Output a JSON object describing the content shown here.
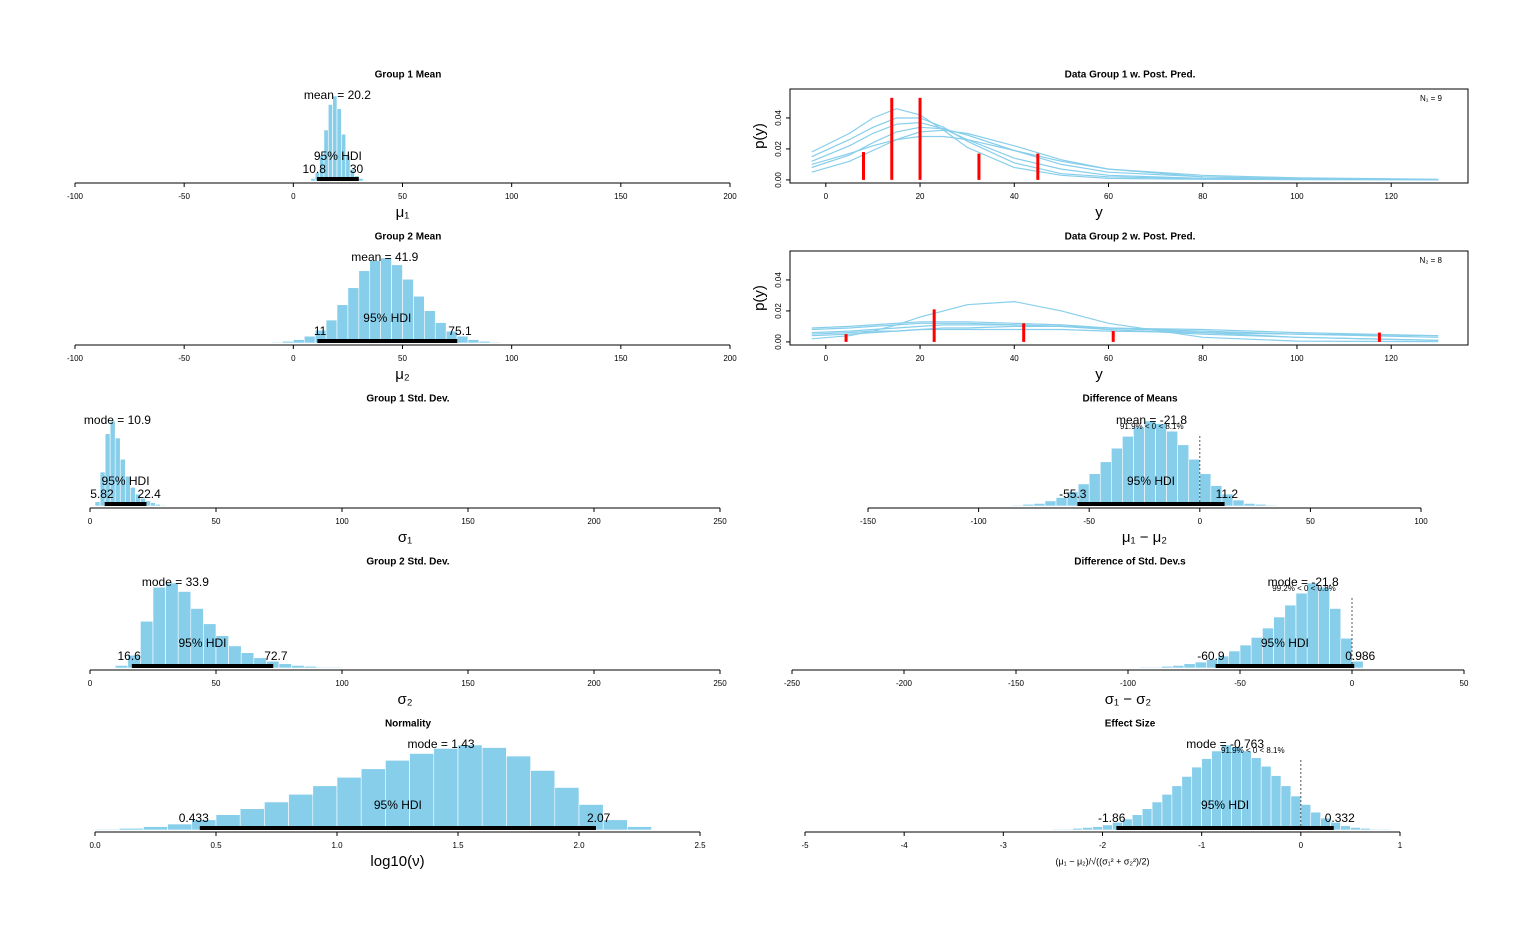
{
  "chart_data": [
    {
      "type": "histogram",
      "title": "Group 1 Mean",
      "xlabel": "μ₁",
      "xlim": [
        -100,
        200
      ],
      "xticks": [
        -100,
        -50,
        0,
        50,
        100,
        150,
        200
      ],
      "bins": [
        8,
        10,
        12,
        14,
        16,
        18,
        20,
        22,
        24,
        26,
        28,
        30,
        32,
        34
      ],
      "counts": [
        3,
        10,
        30,
        60,
        90,
        100,
        85,
        55,
        30,
        14,
        6,
        3,
        1
      ],
      "color": "#87ceeb",
      "center": {
        "value": 20.2,
        "label": "mean = 20.2"
      },
      "hdi": [
        10.8,
        30
      ],
      "hdi_label": "95% HDI"
    },
    {
      "type": "ppc",
      "title": "Data Group 1 w. Post. Pred.",
      "xlabel": "y",
      "ylabel": "p(y)",
      "annotation": "N₁ = 9",
      "xlim": [
        -7.6,
        136.3
      ],
      "ylim": [
        -0.002,
        0.0587
      ],
      "xticks": [
        0,
        20,
        40,
        60,
        80,
        100,
        120
      ],
      "yticks": [
        {
          "value": 0,
          "label": "0.00"
        },
        {
          "value": 0.02,
          "label": "0.02"
        },
        {
          "value": 0.04,
          "label": "0.04"
        }
      ],
      "x": [
        -3,
        5,
        10,
        15,
        20,
        25,
        30,
        40,
        50,
        60,
        80,
        100,
        130
      ],
      "series": [
        {
          "color": "#87ceeb",
          "values": [
            0.012,
            0.022,
            0.03,
            0.036,
            0.037,
            0.033,
            0.026,
            0.014,
            0.007,
            0.003,
            0.001,
            0.0005,
            0.0001
          ]
        },
        {
          "color": "#87ceeb",
          "values": [
            0.008,
            0.016,
            0.024,
            0.031,
            0.034,
            0.033,
            0.029,
            0.019,
            0.01,
            0.005,
            0.002,
            0.0008,
            0.0002
          ]
        },
        {
          "color": "#87ceeb",
          "values": [
            0.015,
            0.026,
            0.034,
            0.04,
            0.04,
            0.034,
            0.025,
            0.011,
            0.004,
            0.002,
            0.0007,
            0.0003,
            0.0001
          ]
        },
        {
          "color": "#87ceeb",
          "values": [
            0.01,
            0.017,
            0.022,
            0.026,
            0.028,
            0.028,
            0.026,
            0.019,
            0.012,
            0.007,
            0.003,
            0.0013,
            0.0004
          ]
        },
        {
          "color": "#87ceeb",
          "values": [
            0.005,
            0.012,
            0.019,
            0.026,
            0.031,
            0.032,
            0.03,
            0.022,
            0.013,
            0.007,
            0.002,
            0.0008,
            0.0002
          ]
        },
        {
          "color": "#87ceeb",
          "values": [
            0.018,
            0.03,
            0.04,
            0.046,
            0.042,
            0.032,
            0.021,
            0.008,
            0.003,
            0.001,
            0.0004,
            0.0002,
            0.0001
          ]
        }
      ],
      "spikes": {
        "color": "#ff0000",
        "x": [
          8,
          14,
          20,
          32.5,
          45
        ],
        "values": [
          0.018,
          0.053,
          0.053,
          0.017,
          0.017
        ]
      }
    },
    {
      "type": "histogram",
      "title": "Group 2 Mean",
      "xlabel": "μ₂",
      "xlim": [
        -100,
        200
      ],
      "xticks": [
        -100,
        -50,
        0,
        50,
        100,
        150,
        200
      ],
      "bins": [
        -10,
        -5,
        0,
        5,
        10,
        15,
        20,
        25,
        30,
        35,
        40,
        45,
        50,
        55,
        60,
        65,
        70,
        75,
        80,
        85,
        90,
        95
      ],
      "counts": [
        1,
        2,
        4,
        8,
        15,
        27,
        45,
        65,
        85,
        97,
        100,
        92,
        75,
        55,
        38,
        24,
        14,
        8,
        4,
        2,
        1
      ],
      "color": "#87ceeb",
      "center": {
        "value": 41.9,
        "label": "mean = 41.9"
      },
      "hdi": [
        11,
        75.1
      ],
      "hdi_label": "95% HDI"
    },
    {
      "type": "ppc",
      "title": "Data Group 2 w. Post. Pred.",
      "xlabel": "y",
      "ylabel": "p(y)",
      "annotation": "N₂ = 8",
      "xlim": [
        -7.6,
        136.3
      ],
      "ylim": [
        -0.002,
        0.0587
      ],
      "xticks": [
        0,
        20,
        40,
        60,
        80,
        100,
        120
      ],
      "yticks": [
        {
          "value": 0,
          "label": "0.00"
        },
        {
          "value": 0.02,
          "label": "0.02"
        },
        {
          "value": 0.04,
          "label": "0.04"
        }
      ],
      "x": [
        -3,
        5,
        10,
        15,
        20,
        25,
        30,
        40,
        50,
        60,
        80,
        100,
        130
      ],
      "series": [
        {
          "color": "#87ceeb",
          "values": [
            0.006,
            0.007,
            0.008,
            0.009,
            0.01,
            0.011,
            0.011,
            0.011,
            0.01,
            0.009,
            0.007,
            0.005,
            0.003
          ]
        },
        {
          "color": "#87ceeb",
          "values": [
            0.008,
            0.009,
            0.01,
            0.011,
            0.012,
            0.012,
            0.012,
            0.011,
            0.01,
            0.008,
            0.005,
            0.003,
            0.001
          ]
        },
        {
          "color": "#87ceeb",
          "values": [
            0.002,
            0.004,
            0.007,
            0.011,
            0.016,
            0.02,
            0.024,
            0.026,
            0.02,
            0.012,
            0.003,
            0.0005,
            0.0001
          ]
        },
        {
          "color": "#87ceeb",
          "values": [
            0.005,
            0.006,
            0.007,
            0.007,
            0.008,
            0.008,
            0.008,
            0.008,
            0.008,
            0.007,
            0.006,
            0.005,
            0.004
          ]
        },
        {
          "color": "#87ceeb",
          "values": [
            0.009,
            0.01,
            0.011,
            0.012,
            0.013,
            0.013,
            0.013,
            0.012,
            0.011,
            0.009,
            0.006,
            0.003,
            0.001
          ]
        },
        {
          "color": "#87ceeb",
          "values": [
            0.004,
            0.005,
            0.006,
            0.007,
            0.008,
            0.009,
            0.009,
            0.01,
            0.01,
            0.009,
            0.008,
            0.006,
            0.004
          ]
        }
      ],
      "spikes": {
        "color": "#ff0000",
        "x": [
          4.3,
          23,
          42,
          61,
          117.5
        ],
        "values": [
          0.005,
          0.021,
          0.012,
          0.007,
          0.006
        ]
      }
    },
    {
      "type": "histogram",
      "title": "Group 1 Std. Dev.",
      "xlabel": "σ₁",
      "xlim": [
        0,
        250
      ],
      "xticks": [
        0,
        50,
        100,
        150,
        200,
        250
      ],
      "bins": [
        2,
        4,
        6,
        8,
        10,
        12,
        14,
        16,
        18,
        20,
        22,
        24,
        26,
        28,
        30
      ],
      "counts": [
        5,
        40,
        85,
        100,
        80,
        55,
        35,
        22,
        14,
        9,
        6,
        4,
        2,
        1
      ],
      "color": "#87ceeb",
      "center": {
        "value": 10.9,
        "label": "mode = 10.9"
      },
      "hdi": [
        5.82,
        22.4
      ],
      "hdi_label": "95% HDI"
    },
    {
      "type": "histogram",
      "title": "Difference of Means",
      "xlabel": "μ₁ − μ₂",
      "xlim": [
        -150,
        100
      ],
      "xticks": [
        -150,
        -100,
        -50,
        0,
        50,
        100
      ],
      "bins": [
        -85,
        -80,
        -75,
        -70,
        -65,
        -60,
        -55,
        -50,
        -45,
        -40,
        -35,
        -30,
        -25,
        -20,
        -15,
        -10,
        -5,
        0,
        5,
        10,
        15,
        20,
        25,
        30,
        35
      ],
      "counts": [
        1,
        2,
        3,
        6,
        10,
        17,
        26,
        38,
        52,
        68,
        82,
        93,
        100,
        97,
        88,
        72,
        55,
        38,
        24,
        14,
        7,
        3,
        2,
        1
      ],
      "color": "#87ceeb",
      "center": {
        "value": -21.8,
        "label": "mean = -21.8"
      },
      "hdi": [
        -55.3,
        11.2
      ],
      "hdi_label": "95% HDI",
      "comp_value": 0,
      "comp_label": "91.9% < 0 < 8.1%"
    },
    {
      "type": "histogram",
      "title": "Group 2 Std. Dev.",
      "xlabel": "σ₂",
      "xlim": [
        0,
        250
      ],
      "xticks": [
        0,
        50,
        100,
        150,
        200,
        250
      ],
      "bins": [
        10,
        15,
        20,
        25,
        30,
        35,
        40,
        45,
        50,
        55,
        60,
        65,
        70,
        75,
        80,
        85,
        90,
        95,
        100
      ],
      "counts": [
        3,
        15,
        55,
        95,
        100,
        90,
        70,
        52,
        38,
        26,
        18,
        12,
        8,
        5,
        3,
        2,
        1,
        1
      ],
      "color": "#87ceeb",
      "center": {
        "value": 33.9,
        "label": "mode = 33.9"
      },
      "hdi": [
        16.6,
        72.7
      ],
      "hdi_label": "95% HDI"
    },
    {
      "type": "histogram",
      "title": "Difference of Std. Dev.s",
      "xlabel": "σ₁ − σ₂",
      "xlim": [
        -250,
        50
      ],
      "xticks": [
        -250,
        -200,
        -150,
        -100,
        -50,
        0,
        50
      ],
      "bins": [
        -95,
        -90,
        -85,
        -80,
        -75,
        -70,
        -65,
        -60,
        -55,
        -50,
        -45,
        -40,
        -35,
        -30,
        -25,
        -20,
        -15,
        -10,
        -5,
        0,
        5
      ],
      "counts": [
        1,
        1,
        2,
        3,
        5,
        7,
        10,
        14,
        20,
        27,
        36,
        47,
        60,
        74,
        88,
        100,
        95,
        70,
        35,
        8
      ],
      "color": "#87ceeb",
      "center": {
        "value": -21.8,
        "label": "mode = -21.8"
      },
      "hdi": [
        -60.9,
        0.986
      ],
      "hdi_label": "95% HDI",
      "comp_value": 0,
      "comp_label": "99.2% < 0 < 0.8%"
    },
    {
      "type": "histogram",
      "title": "Normality",
      "xlabel": "log10(ν)",
      "xlim": [
        0,
        2.5
      ],
      "xticks": [
        {
          "value": 0,
          "label": "0.0"
        },
        0.5,
        {
          "value": 1,
          "label": "1.0"
        },
        1.5,
        {
          "value": 2,
          "label": "2.0"
        },
        2.5
      ],
      "bins": [
        0,
        0.1,
        0.2,
        0.3,
        0.4,
        0.5,
        0.6,
        0.7,
        0.8,
        0.9,
        1.0,
        1.1,
        1.2,
        1.3,
        1.4,
        1.5,
        1.6,
        1.7,
        1.8,
        1.9,
        2.0,
        2.1,
        2.2,
        2.3
      ],
      "counts": [
        1,
        2,
        4,
        7,
        12,
        18,
        25,
        33,
        42,
        52,
        62,
        72,
        82,
        90,
        96,
        100,
        97,
        87,
        70,
        50,
        30,
        12,
        4
      ],
      "color": "#87ceeb",
      "center": {
        "value": 1.43,
        "label": "mode = 1.43"
      },
      "hdi": [
        0.433,
        2.07
      ],
      "hdi_label": "95% HDI"
    },
    {
      "type": "histogram",
      "title": "Effect Size",
      "xlabel": "(μ₁ − μ₂)/√((σ₁² + σ₂²)/2)",
      "xlim": [
        -5,
        1
      ],
      "xticks": [
        -5,
        -4,
        -3,
        -2,
        -1,
        0,
        1
      ],
      "bins": [
        -2.5,
        -2.4,
        -2.3,
        -2.2,
        -2.1,
        -2,
        -1.9,
        -1.8,
        -1.7,
        -1.6,
        -1.5,
        -1.4,
        -1.3,
        -1.2,
        -1.1,
        -1,
        -0.9,
        -0.8,
        -0.7,
        -0.6,
        -0.5,
        -0.4,
        -0.3,
        -0.2,
        -0.1,
        0,
        0.1,
        0.2,
        0.3,
        0.4,
        0.5,
        0.6,
        0.7,
        0.8,
        0.9
      ],
      "counts": [
        1,
        1,
        2,
        3,
        4,
        6,
        9,
        13,
        18,
        25,
        33,
        42,
        52,
        63,
        74,
        84,
        93,
        100,
        98,
        93,
        85,
        75,
        64,
        52,
        40,
        30,
        21,
        14,
        9,
        5,
        3,
        2,
        1,
        1
      ],
      "color": "#87ceeb",
      "center": {
        "value": -0.763,
        "label": "mode = -0.763"
      },
      "hdi": [
        -1.86,
        0.332
      ],
      "hdi_label": "95% HDI",
      "comp_value": 0,
      "comp_label": "91.9% < 0 < 8.1%"
    }
  ]
}
